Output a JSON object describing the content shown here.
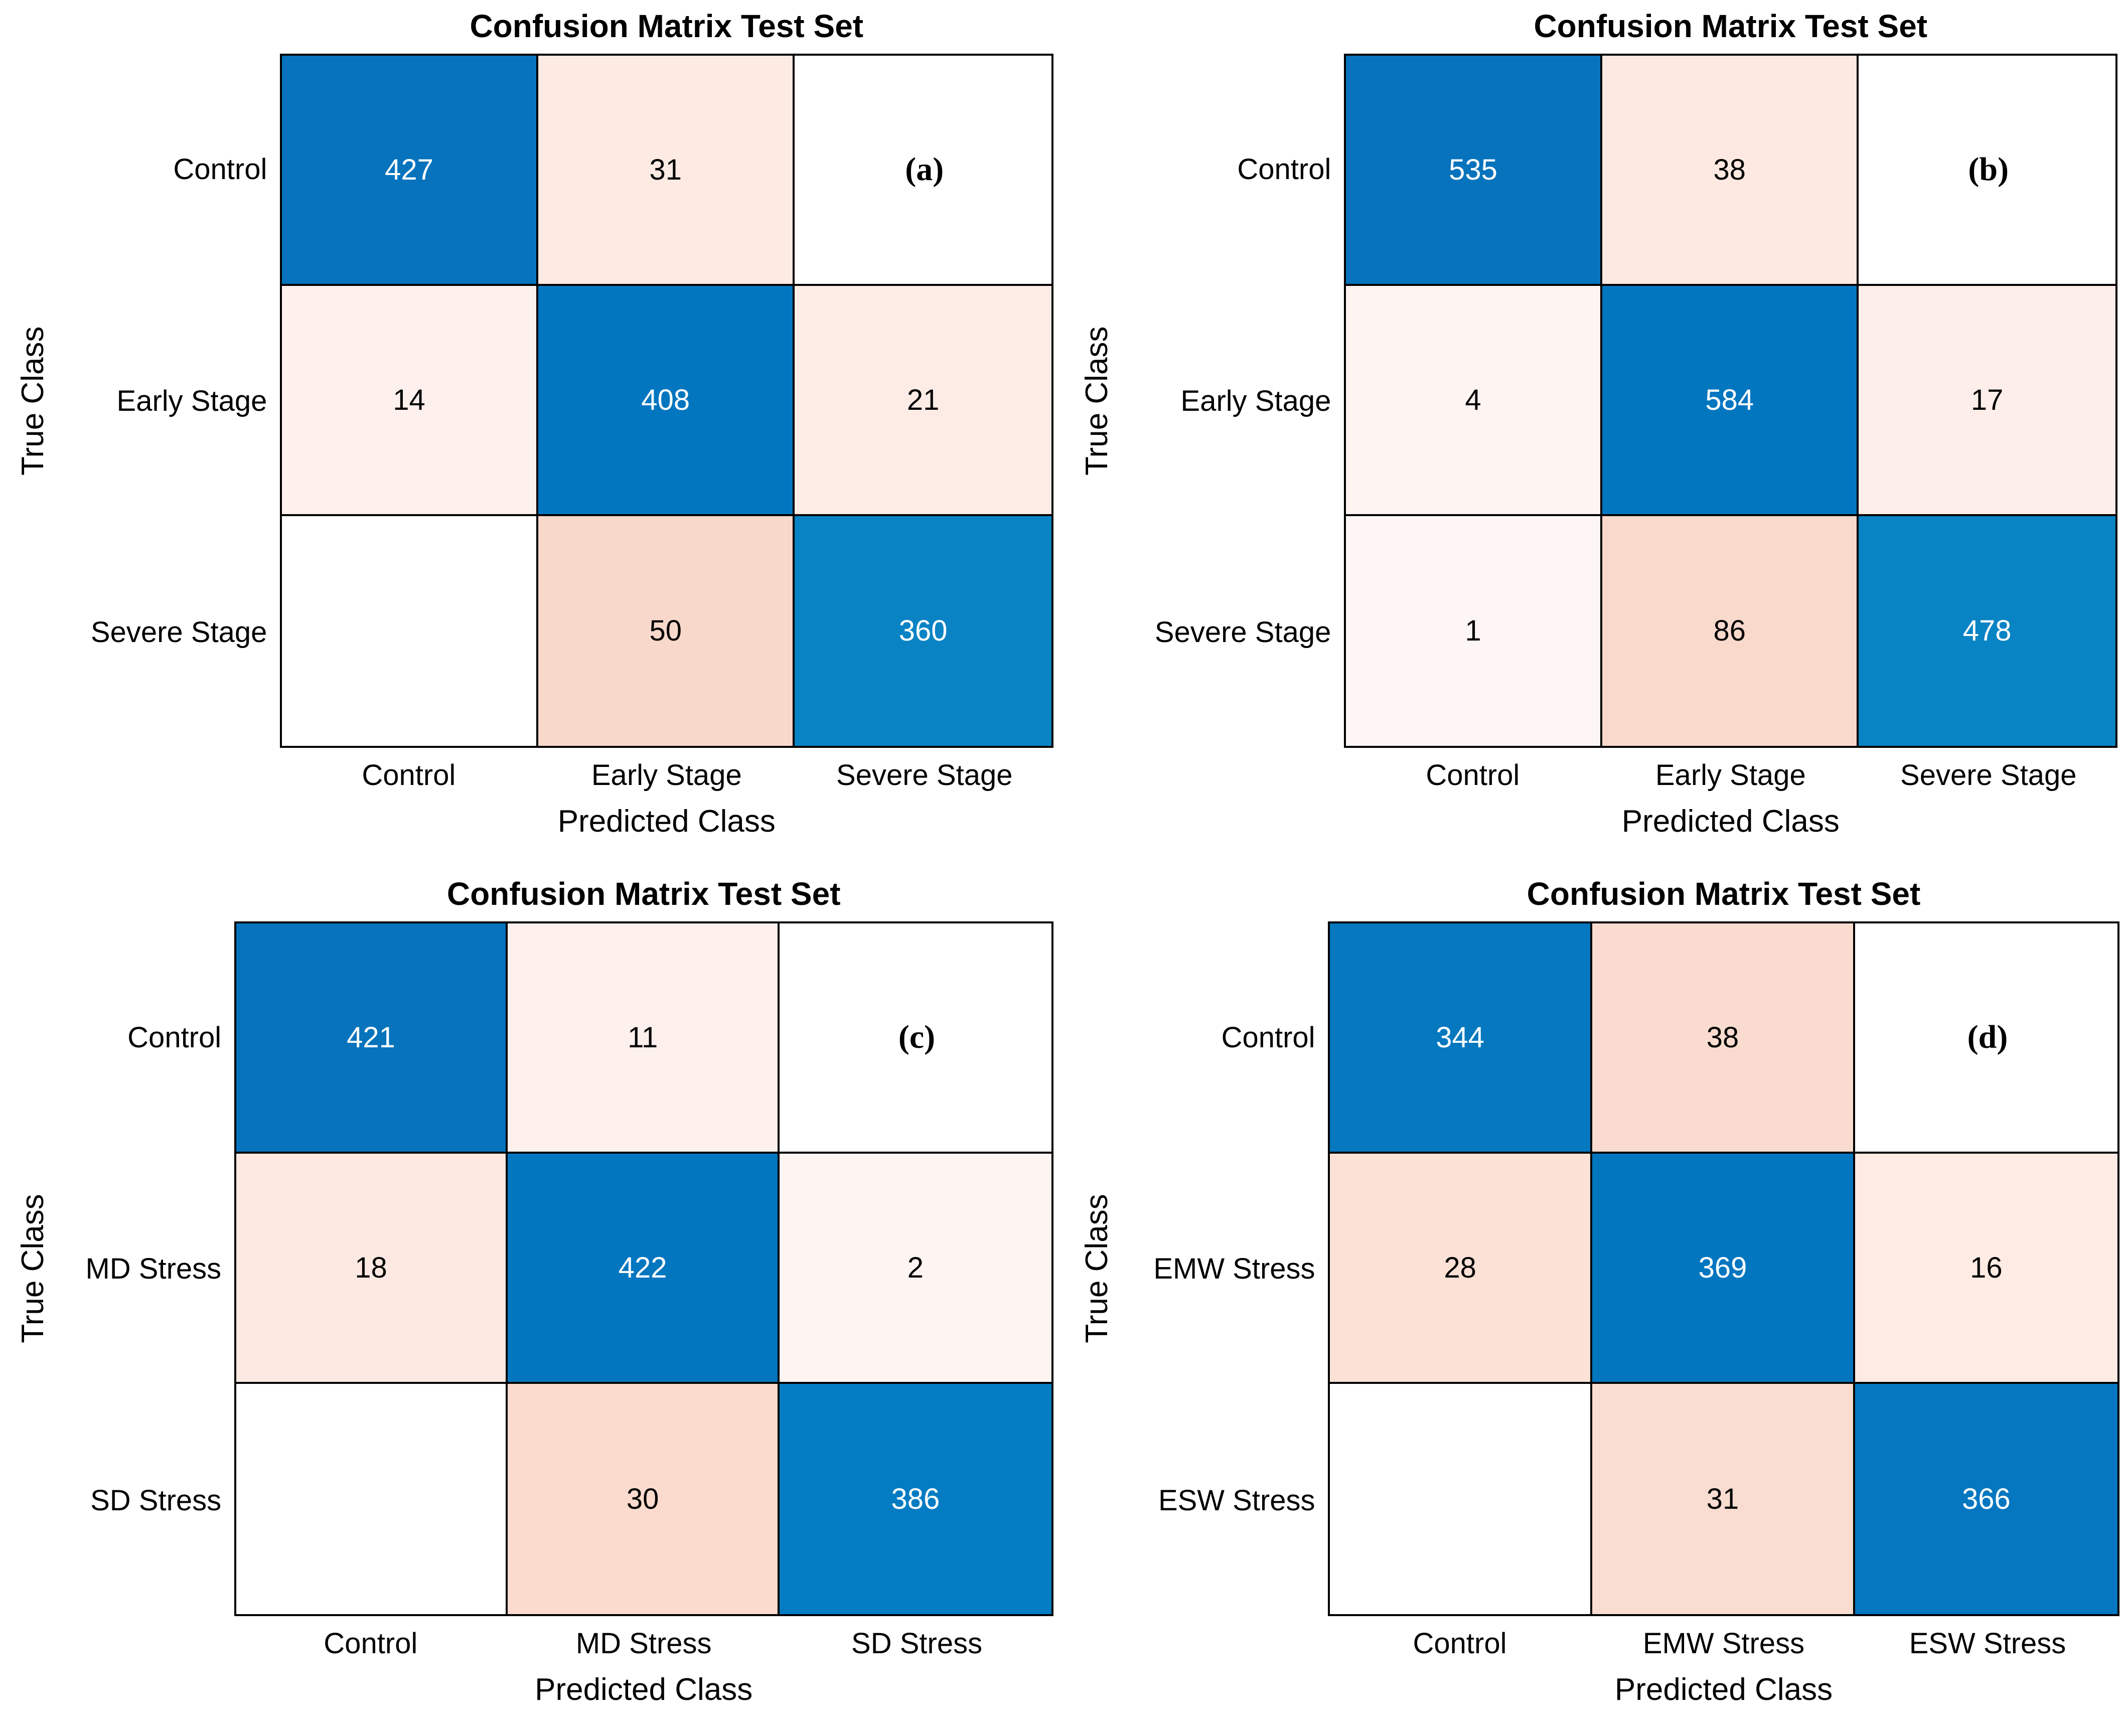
{
  "accent_colors": {
    "diagonal_blue": "#0673bc",
    "off_diagonal_salmon": "#fad8cc",
    "empty_cell": "#ffffff",
    "grid_line": "#000000"
  },
  "panels": [
    {
      "tag": "(a)",
      "title": "Confusion Matrix Test Set",
      "xlabel": "Predicted Class",
      "ylabel": "True Class",
      "row_labels": [
        "Control",
        "Early Stage",
        "Severe Stage"
      ],
      "col_labels": [
        "Control",
        "Early Stage",
        "Severe Stage"
      ],
      "cells": [
        {
          "v": "427",
          "style": "background:#0673bc;color:#ffffff"
        },
        {
          "v": "31",
          "style": "background:#fdeae3;color:#000000"
        },
        {
          "v": "",
          "style": "background:#ffffff;color:#000000"
        },
        {
          "v": "14",
          "style": "background:#fdf0ed;color:#000000"
        },
        {
          "v": "408",
          "style": "background:#0376c0;color:#ffffff"
        },
        {
          "v": "21",
          "style": "background:#fdece6;color:#000000"
        },
        {
          "v": "",
          "style": "background:#ffffff;color:#000000"
        },
        {
          "v": "50",
          "style": "background:#f9d8cc;color:#000000"
        },
        {
          "v": "360",
          "style": "background:#0a83c5;color:#ffffff"
        }
      ]
    },
    {
      "tag": "(b)",
      "title": "Confusion Matrix Test Set",
      "xlabel": "Predicted Class",
      "ylabel": "True Class",
      "row_labels": [
        "Control",
        "Early Stage",
        "Severe Stage"
      ],
      "col_labels": [
        "Control",
        "Early Stage",
        "Severe Stage"
      ],
      "cells": [
        {
          "v": "535",
          "style": "background:#0673bc;color:#ffffff"
        },
        {
          "v": "38",
          "style": "background:#fde9e1;color:#000000"
        },
        {
          "v": "",
          "style": "background:#ffffff;color:#000000"
        },
        {
          "v": "4",
          "style": "background:#fef4f1;color:#000000"
        },
        {
          "v": "584",
          "style": "background:#0376c0;color:#ffffff"
        },
        {
          "v": "17",
          "style": "background:#feeee9;color:#000000"
        },
        {
          "v": "1",
          "style": "background:#fef6f4;color:#000000"
        },
        {
          "v": "86",
          "style": "background:#fad9cd;color:#000000"
        },
        {
          "v": "478",
          "style": "background:#0883c4;color:#ffffff"
        }
      ]
    },
    {
      "tag": "(c)",
      "title": "Confusion Matrix Test Set",
      "xlabel": "Predicted Class",
      "ylabel": "True Class",
      "row_labels": [
        "Control",
        "MD Stress",
        "SD Stress"
      ],
      "col_labels": [
        "Control",
        "MD Stress",
        "SD Stress"
      ],
      "cells": [
        {
          "v": "421",
          "style": "background:#0673bc;color:#ffffff"
        },
        {
          "v": "11",
          "style": "background:#fef0ec;color:#000000"
        },
        {
          "v": "",
          "style": "background:#ffffff;color:#000000"
        },
        {
          "v": "18",
          "style": "background:#fde9e2;color:#000000"
        },
        {
          "v": "422",
          "style": "background:#0376c0;color:#ffffff"
        },
        {
          "v": "2",
          "style": "background:#fef5f2;color:#000000"
        },
        {
          "v": "",
          "style": "background:#ffffff;color:#000000"
        },
        {
          "v": "30",
          "style": "background:#fadbce;color:#000000"
        },
        {
          "v": "386",
          "style": "background:#047cc3;color:#ffffff"
        }
      ]
    },
    {
      "tag": "(d)",
      "title": "Confusion Matrix Test Set",
      "xlabel": "Predicted Class",
      "ylabel": "True Class",
      "row_labels": [
        "Control",
        "EMW Stress",
        "ESW Stress"
      ],
      "col_labels": [
        "Control",
        "EMW Stress",
        "ESW Stress"
      ],
      "cells": [
        {
          "v": "344",
          "style": "background:#0578bf;color:#ffffff"
        },
        {
          "v": "38",
          "style": "background:#f9dccf;color:#000000"
        },
        {
          "v": "",
          "style": "background:#ffffff;color:#000000"
        },
        {
          "v": "28",
          "style": "background:#fbe1d6;color:#000000"
        },
        {
          "v": "369",
          "style": "background:#0376c0;color:#ffffff"
        },
        {
          "v": "16",
          "style": "background:#fdebe4;color:#000000"
        },
        {
          "v": "",
          "style": "background:#ffffff;color:#000000"
        },
        {
          "v": "31",
          "style": "background:#faddd1;color:#000000"
        },
        {
          "v": "366",
          "style": "background:#0477c0;color:#ffffff"
        }
      ]
    }
  ],
  "chart_data": [
    {
      "type": "heatmap",
      "subtype": "confusion_matrix",
      "panel": "(a)",
      "title": "Confusion Matrix Test Set",
      "xlabel": "Predicted Class",
      "ylabel": "True Class",
      "classes": [
        "Control",
        "Early Stage",
        "Severe Stage"
      ],
      "matrix_rows_true_by_cols_predicted": [
        [
          427,
          31,
          0
        ],
        [
          14,
          408,
          21
        ],
        [
          0,
          50,
          360
        ]
      ],
      "color_rule": "diagonal shades of blue scaled by value, off-diagonal shades of salmon scaled by value, zero cells white, black gridlines"
    },
    {
      "type": "heatmap",
      "subtype": "confusion_matrix",
      "panel": "(b)",
      "title": "Confusion Matrix Test Set",
      "xlabel": "Predicted Class",
      "ylabel": "True Class",
      "classes": [
        "Control",
        "Early Stage",
        "Severe Stage"
      ],
      "matrix_rows_true_by_cols_predicted": [
        [
          535,
          38,
          0
        ],
        [
          4,
          584,
          17
        ],
        [
          1,
          86,
          478
        ]
      ],
      "color_rule": "diagonal shades of blue scaled by value, off-diagonal shades of salmon scaled by value, zero cells white, black gridlines"
    },
    {
      "type": "heatmap",
      "subtype": "confusion_matrix",
      "panel": "(c)",
      "title": "Confusion Matrix Test Set",
      "xlabel": "Predicted Class",
      "ylabel": "True Class",
      "classes": [
        "Control",
        "MD Stress",
        "SD Stress"
      ],
      "matrix_rows_true_by_cols_predicted": [
        [
          421,
          11,
          0
        ],
        [
          18,
          422,
          2
        ],
        [
          0,
          30,
          386
        ]
      ],
      "color_rule": "diagonal shades of blue scaled by value, off-diagonal shades of salmon scaled by value, zero cells white, black gridlines"
    },
    {
      "type": "heatmap",
      "subtype": "confusion_matrix",
      "panel": "(d)",
      "title": "Confusion Matrix Test Set",
      "xlabel": "Predicted Class",
      "ylabel": "True Class",
      "classes": [
        "Control",
        "EMW Stress",
        "ESW Stress"
      ],
      "matrix_rows_true_by_cols_predicted": [
        [
          344,
          38,
          0
        ],
        [
          28,
          369,
          16
        ],
        [
          0,
          31,
          366
        ]
      ],
      "color_rule": "diagonal shades of blue scaled by value, off-diagonal shades of salmon scaled by value, zero cells white, black gridlines"
    }
  ]
}
